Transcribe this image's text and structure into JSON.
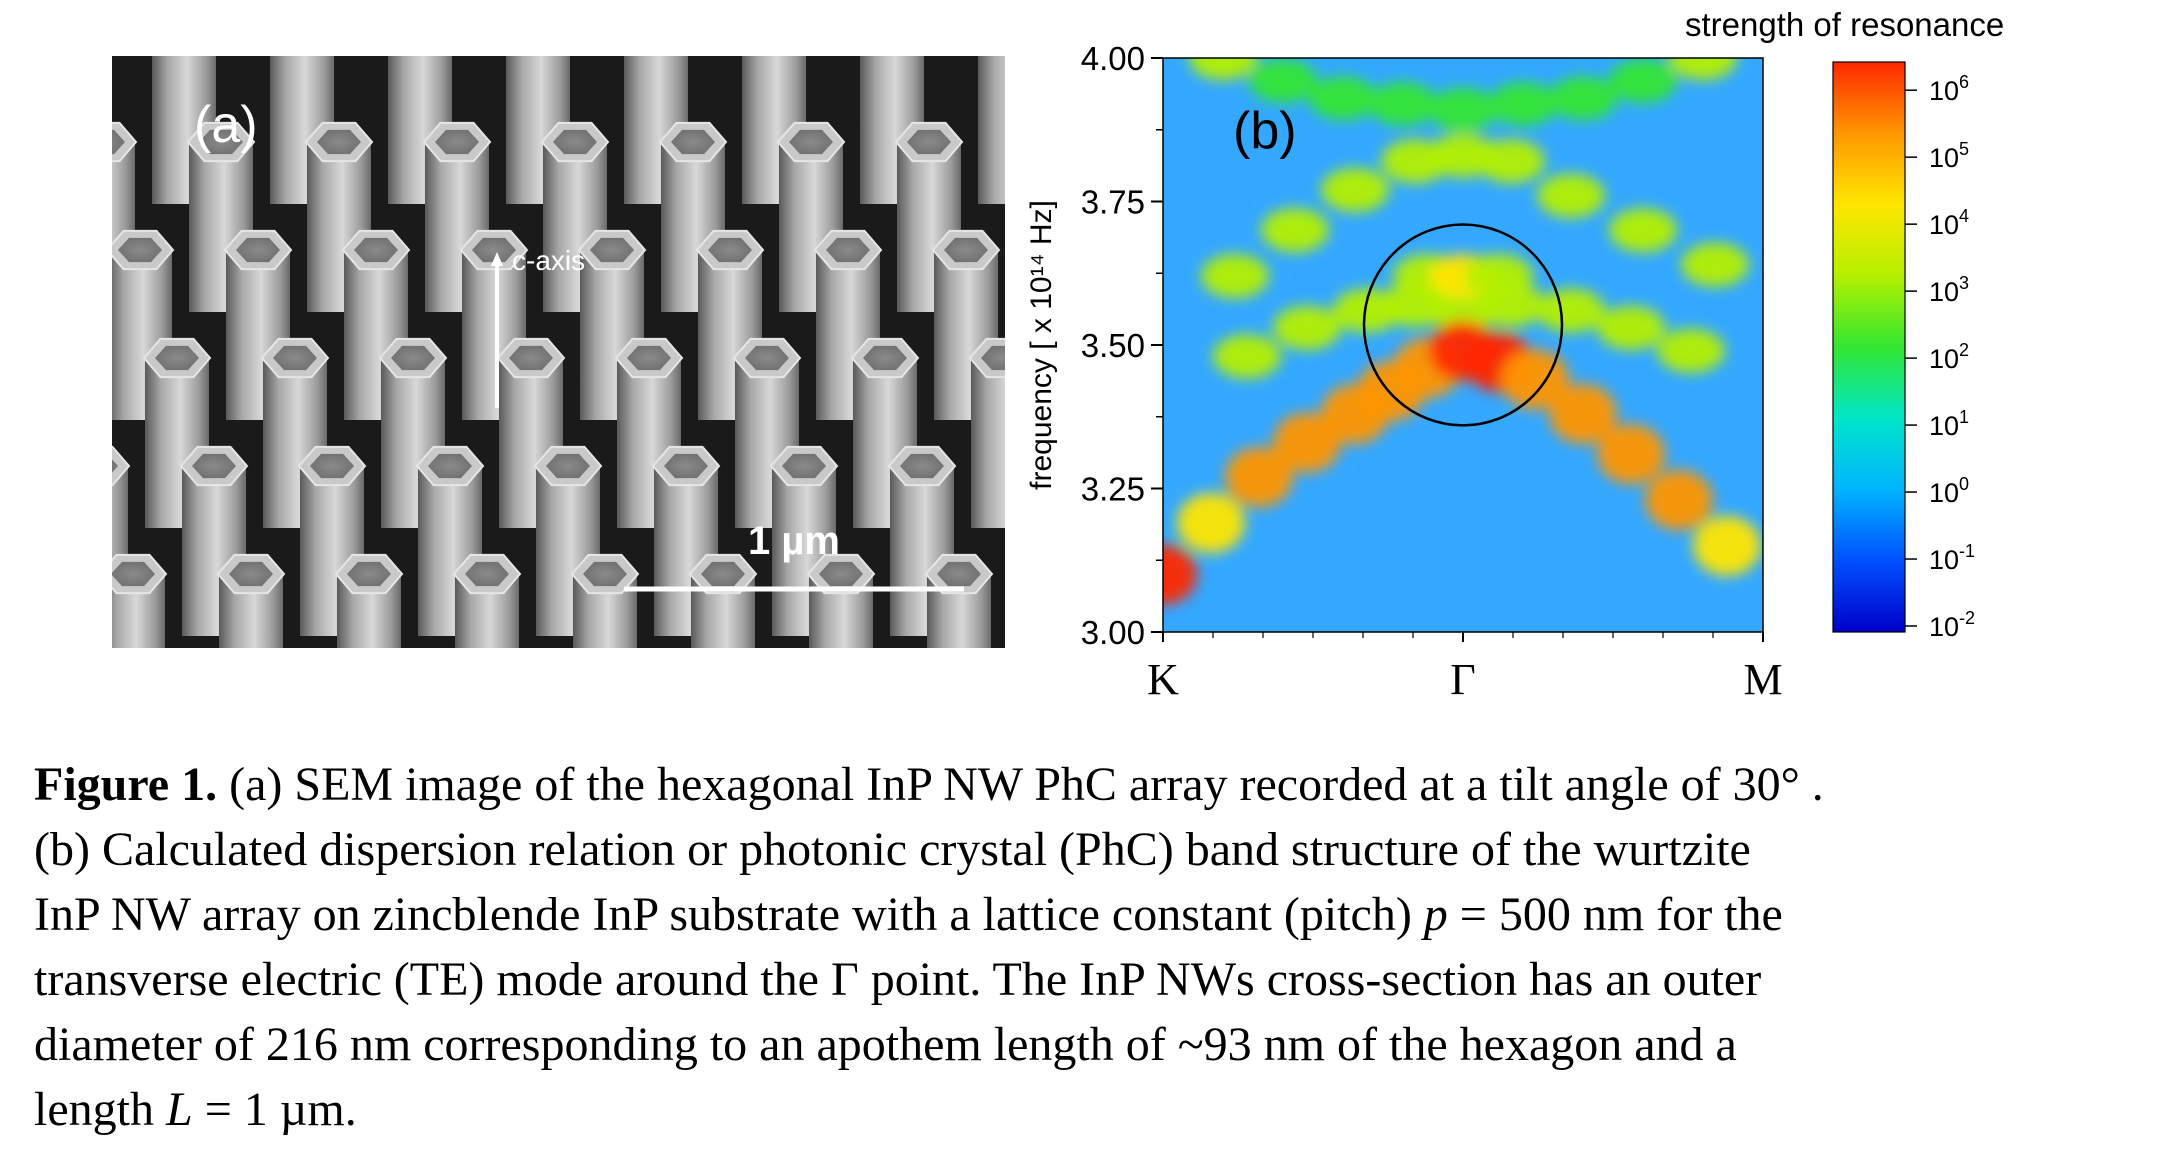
{
  "figure": {
    "panel_a": {
      "label": "(a)",
      "axis_label": "c-axis",
      "scale_bar_label": "1 µm"
    },
    "panel_b": {
      "label": "(b)",
      "colorbar": {
        "title": "strength of resonance",
        "ticks": [
          {
            "base": "10",
            "exp": "6"
          },
          {
            "base": "10",
            "exp": "5"
          },
          {
            "base": "10",
            "exp": "4"
          },
          {
            "base": "10",
            "exp": "3"
          },
          {
            "base": "10",
            "exp": "2"
          },
          {
            "base": "10",
            "exp": "1"
          },
          {
            "base": "10",
            "exp": "0"
          },
          {
            "base": "10",
            "exp": "-1"
          },
          {
            "base": "10",
            "exp": "-2"
          }
        ]
      }
    }
  },
  "chart_data": {
    "type": "heatmap",
    "title": "",
    "xlabel": "",
    "ylabel": "frequency [ x 10¹⁴ Hz]",
    "x_ticks": [
      "K",
      "Γ",
      "M"
    ],
    "y_ticks": [
      "3.00",
      "3.25",
      "3.50",
      "3.75",
      "4.00"
    ],
    "ylim": [
      3.0,
      4.0
    ],
    "log_color_scale": true,
    "color_range_exponent": [
      -2,
      6
    ],
    "colorbar_colors": [
      "#0000c8",
      "#0050ff",
      "#00b4ff",
      "#00e6c8",
      "#32e632",
      "#b4f000",
      "#ffe600",
      "#ff9600",
      "#ff2800"
    ],
    "band_strong": {
      "k": [
        0.0,
        0.08,
        0.16,
        0.24,
        0.32,
        0.38,
        0.44,
        0.5,
        0.56,
        0.62,
        0.7,
        0.78,
        0.86,
        0.94
      ],
      "f": [
        3.1,
        3.19,
        3.27,
        3.33,
        3.38,
        3.42,
        3.46,
        3.49,
        3.47,
        3.44,
        3.38,
        3.31,
        3.23,
        3.15
      ],
      "log_strength": [
        5.5,
        4.0,
        4.8,
        5.0,
        4.8,
        4.5,
        5.4,
        6.0,
        5.6,
        5.0,
        4.5,
        5.0,
        5.2,
        4.0
      ]
    },
    "band_upper": {
      "k": [
        0.12,
        0.22,
        0.32,
        0.42,
        0.5,
        0.58,
        0.68,
        0.8,
        0.92
      ],
      "f": [
        3.62,
        3.7,
        3.77,
        3.82,
        3.83,
        3.82,
        3.76,
        3.7,
        3.64
      ],
      "log_strength": [
        3.0,
        3.4,
        3.4,
        3.2,
        3.0,
        3.2,
        3.4,
        3.4,
        3.0
      ]
    },
    "band_middle": {
      "k": [
        0.14,
        0.24,
        0.34,
        0.42,
        0.5,
        0.58,
        0.68,
        0.78,
        0.88
      ],
      "f": [
        3.48,
        3.53,
        3.56,
        3.57,
        3.56,
        3.57,
        3.56,
        3.53,
        3.49
      ],
      "log_strength": [
        3.0,
        3.2,
        3.2,
        3.0,
        2.8,
        3.0,
        3.2,
        3.2,
        3.0
      ]
    },
    "band_top": {
      "k": [
        0.1,
        0.2,
        0.3,
        0.4,
        0.5,
        0.6,
        0.7,
        0.8,
        0.9
      ],
      "f": [
        4.0,
        3.96,
        3.93,
        3.92,
        3.91,
        3.92,
        3.93,
        3.96,
        4.0
      ],
      "log_strength": [
        2.6,
        2.2,
        2.0,
        1.8,
        1.8,
        1.8,
        2.0,
        2.2,
        2.6
      ]
    },
    "band_resonance": {
      "k": [
        0.44,
        0.5,
        0.56
      ],
      "f": [
        3.62,
        3.62,
        3.62
      ],
      "log_strength": [
        3.4,
        3.8,
        3.4
      ]
    },
    "circle_annotation": {
      "k_center": 0.5,
      "f_center": 3.535,
      "k_radius": 0.165,
      "f_radius": 0.175
    }
  },
  "caption": {
    "lines": [
      [
        {
          "text": "Figure 1.",
          "style": "bold"
        },
        {
          "text": " (a) SEM image of the hexagonal InP NW PhC array recorded at a tilt angle of 30° .",
          "style": "normal"
        }
      ],
      [
        {
          "text": "(b) Calculated dispersion relation or photonic crystal (PhC) band structure of the wurtzite",
          "style": "normal"
        }
      ],
      [
        {
          "text": "InP NW array on zincblende InP substrate with a lattice constant (pitch) ",
          "style": "normal"
        },
        {
          "text": "p",
          "style": "italic"
        },
        {
          "text": " = 500 nm for the",
          "style": "normal"
        }
      ],
      [
        {
          "text": "transverse electric (TE) mode around the Γ point. The InP NWs cross-section has an outer",
          "style": "normal"
        }
      ],
      [
        {
          "text": "diameter of 216 nm corresponding to an apothem length of ~93 nm of the hexagon and a",
          "style": "normal"
        }
      ],
      [
        {
          "text": "length ",
          "style": "normal"
        },
        {
          "text": "L",
          "style": "italic"
        },
        {
          "text": " = 1 µm.",
          "style": "normal"
        }
      ]
    ]
  }
}
